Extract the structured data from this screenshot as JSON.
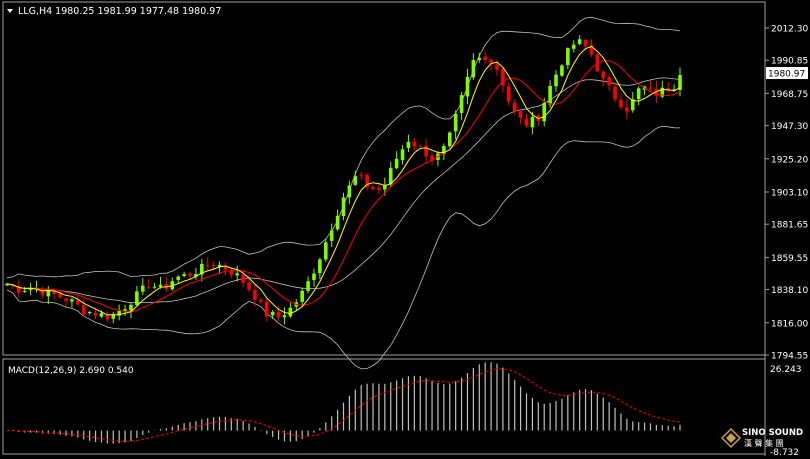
{
  "main_chart": {
    "symbol_label": "LLG,H4",
    "ohlc": {
      "open": "1980.25",
      "high": "1981.99",
      "low": "1977.48",
      "close": "1980.97"
    },
    "header_text": "LLG,H4  1980.25 1981.99 1977.48 1980.97",
    "y_ticks": [
      "2012.30",
      "1990.85",
      "1968.75",
      "1947.30",
      "1925.20",
      "1903.10",
      "1881.65",
      "1859.55",
      "1838.10",
      "1816.00",
      "1794.55"
    ],
    "current_price_label": "1980.97"
  },
  "macd_panel": {
    "label": "MACD(12,26,9) 2.690 0.540",
    "y_top_label": "26.243",
    "y_bottom_label": "-8.732"
  },
  "watermark": {
    "brand": "SINO SOUND",
    "subtitle": "漢 聲 集 團"
  },
  "colors": {
    "background": "#000000",
    "frame": "#a0a0a0",
    "bull_candle": "#7cfc00",
    "bear_candle": "#ff0000",
    "ma_fast": "#ffff00",
    "ma_slow": "#ff0000",
    "bollinger": "#c0c0c0",
    "macd_hist": "#c0c0c0",
    "macd_signal": "#ff0000",
    "text": "#ffffff"
  },
  "chart_data": [
    {
      "type": "candlestick",
      "title": "LLG,H4",
      "ylim": [
        1794.55,
        2020
      ],
      "y_ticks": [
        2012.3,
        1990.85,
        1968.75,
        1947.3,
        1925.2,
        1903.1,
        1881.65,
        1859.55,
        1838.1,
        1816.0,
        1794.55
      ],
      "close_path": [
        1842,
        1838,
        1840,
        1836,
        1834,
        1830,
        1824,
        1822,
        1820,
        1826,
        1834,
        1842,
        1838,
        1846,
        1848,
        1852,
        1856,
        1852,
        1846,
        1836,
        1822,
        1820,
        1826,
        1838,
        1856,
        1878,
        1900,
        1914,
        1906,
        1904,
        1924,
        1938,
        1932,
        1924,
        1934,
        1962,
        1990,
        1994,
        1984,
        1958,
        1948,
        1952,
        1974,
        1992,
        2004,
        1998,
        1978,
        1966,
        1958,
        1974,
        1968,
        1972,
        1976
      ],
      "indicators": [
        "Bollinger Bands",
        "MA fast (yellow)",
        "MA slow (red)"
      ],
      "last": 1980.97
    },
    {
      "type": "bar",
      "title": "MACD(12,26,9)",
      "ylim": [
        -8.732,
        26.243
      ],
      "macd_value": 2.69,
      "signal_value": 0.54
    }
  ]
}
